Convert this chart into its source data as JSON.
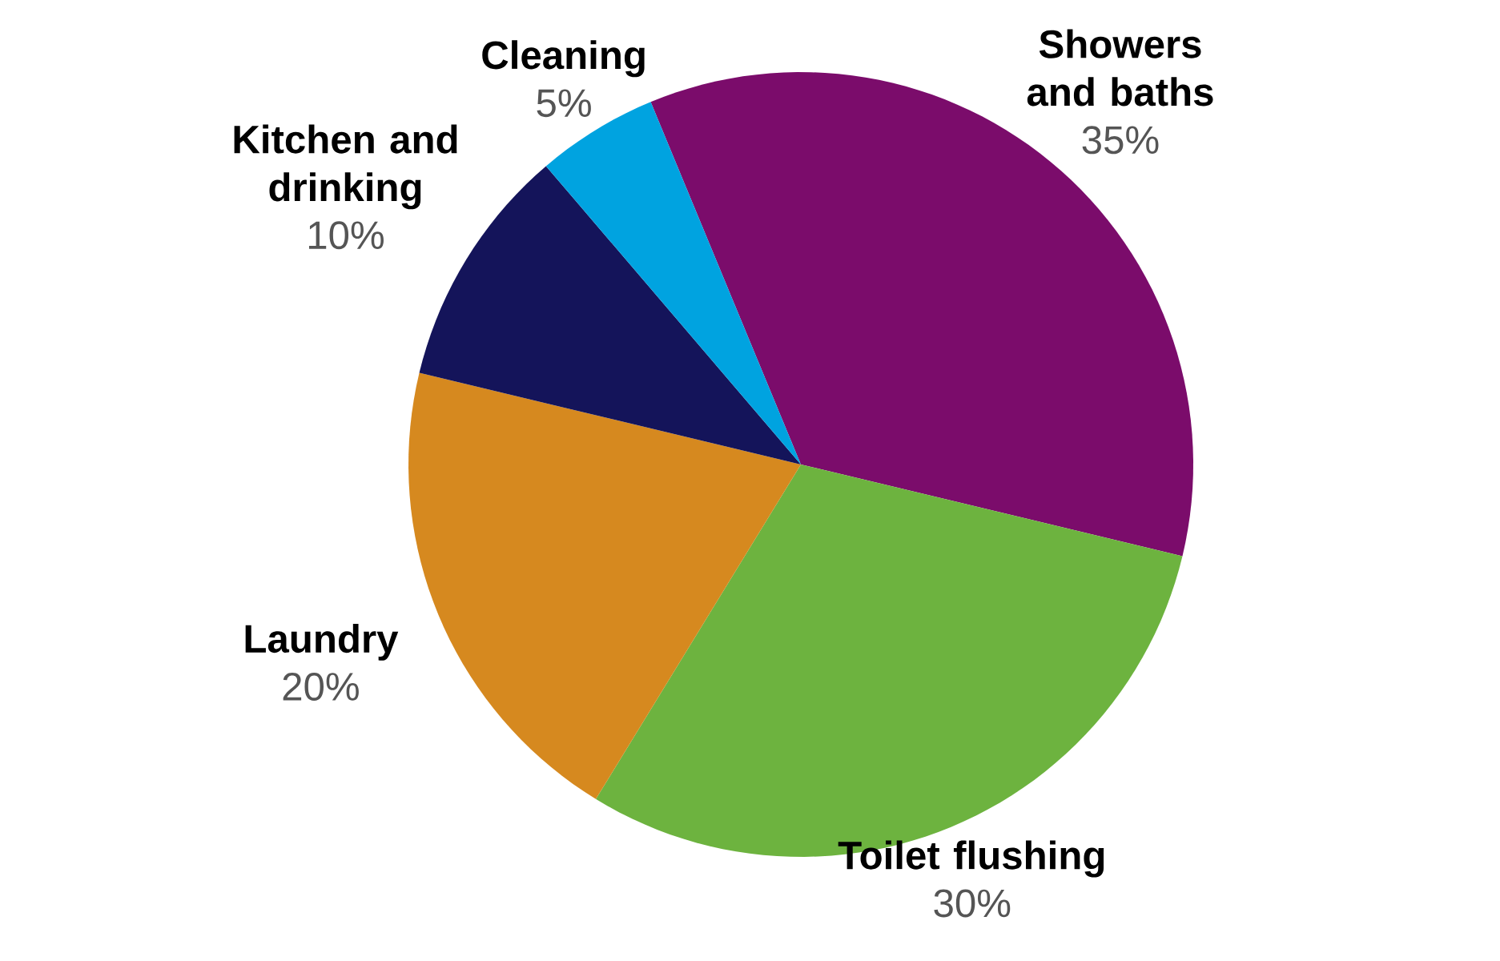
{
  "chart_data": {
    "type": "pie",
    "categories": [
      "Showers and baths",
      "Toilet flushing",
      "Laundry",
      "Kitchen and drinking",
      "Cleaning"
    ],
    "values": [
      35,
      30,
      20,
      10,
      5
    ],
    "value_labels": [
      "35%",
      "30%",
      "20%",
      "10%",
      "5%"
    ],
    "colors": [
      "#7b0c6b",
      "#6db33f",
      "#d6891f",
      "#14145a",
      "#00a3e0"
    ]
  }
}
